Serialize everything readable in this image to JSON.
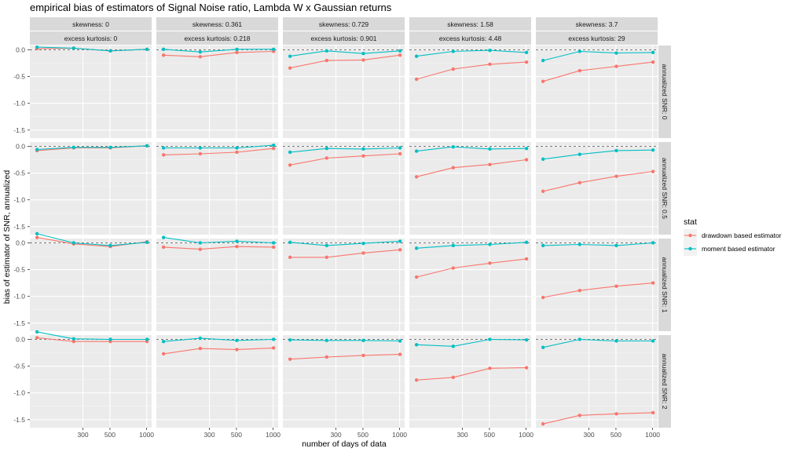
{
  "chart_data": {
    "type": "line",
    "title": "empirical bias of estimators of Signal Noise ratio, Lambda W x Gaussian returns",
    "xlabel": "number of days of data",
    "ylabel": "bias of estimator of SNR, annualized",
    "x": [
      126,
      252,
      504,
      1008
    ],
    "x_scale": "log",
    "xlim": [
      110,
      1100
    ],
    "x_ticks": [
      300,
      500,
      1000
    ],
    "x_tick_labels": [
      "300",
      "500",
      "1000"
    ],
    "ylim": [
      -1.65,
      0.08
    ],
    "y_ticks": [
      0.0,
      -0.5,
      -1.0,
      -1.5
    ],
    "y_tick_labels": [
      "0.0",
      "-0.5",
      "-1.0",
      "-1.5"
    ],
    "reference_line": 0,
    "columns": [
      {
        "skewness": "skewness: 0",
        "kurtosis": "excess kurtosis: 0"
      },
      {
        "skewness": "skewness: 0.361",
        "kurtosis": "excess kurtosis: 0.218"
      },
      {
        "skewness": "skewness: 0.729",
        "kurtosis": "excess kurtosis: 0.901"
      },
      {
        "skewness": "skewness: 1.58",
        "kurtosis": "excess kurtosis: 4.48"
      },
      {
        "skewness": "skewness: 3.7",
        "kurtosis": "excess kurtosis: 29"
      }
    ],
    "rows": [
      "annualized SNR: 0",
      "annualized SNR: 0.5",
      "annualized SNR: 1",
      "annualized SNR: 2"
    ],
    "legend": {
      "title": "stat",
      "entries": [
        {
          "key": "drawdown",
          "label": "drawdown based estimator",
          "color": "#F8766D"
        },
        {
          "key": "moment",
          "label": "moment based estimator",
          "color": "#00BFC4"
        }
      ]
    },
    "series": {
      "drawdown": [
        [
          [
            0.02,
            0.03,
            -0.02,
            0.01
          ],
          [
            -0.1,
            -0.13,
            -0.05,
            -0.03
          ],
          [
            -0.34,
            -0.2,
            -0.19,
            -0.1
          ],
          [
            -0.55,
            -0.36,
            -0.27,
            -0.23
          ],
          [
            -0.59,
            -0.39,
            -0.31,
            -0.23
          ]
        ],
        [
          [
            -0.08,
            -0.03,
            -0.03,
            0.01
          ],
          [
            -0.16,
            -0.14,
            -0.11,
            -0.04
          ],
          [
            -0.35,
            -0.22,
            -0.18,
            -0.14
          ],
          [
            -0.57,
            -0.4,
            -0.34,
            -0.25
          ],
          [
            -0.84,
            -0.68,
            -0.56,
            -0.47
          ]
        ],
        [
          [
            0.1,
            -0.02,
            -0.07,
            0.02
          ],
          [
            -0.08,
            -0.12,
            -0.07,
            -0.08
          ],
          [
            -0.27,
            -0.27,
            -0.19,
            -0.13
          ],
          [
            -0.64,
            -0.47,
            -0.38,
            -0.3
          ],
          [
            -1.02,
            -0.89,
            -0.81,
            -0.75
          ]
        ],
        [
          [
            0.03,
            -0.04,
            -0.04,
            -0.04
          ],
          [
            -0.27,
            -0.17,
            -0.19,
            -0.16
          ],
          [
            -0.37,
            -0.33,
            -0.3,
            -0.28
          ],
          [
            -0.76,
            -0.71,
            -0.54,
            -0.53
          ],
          [
            -1.58,
            -1.42,
            -1.39,
            -1.37
          ]
        ]
      ],
      "moment": [
        [
          [
            0.05,
            0.03,
            -0.02,
            0.01
          ],
          [
            0.01,
            -0.04,
            0.01,
            0.01
          ],
          [
            -0.12,
            -0.02,
            -0.07,
            -0.02
          ],
          [
            -0.12,
            -0.03,
            -0.01,
            -0.05
          ],
          [
            -0.2,
            -0.03,
            -0.06,
            -0.05
          ]
        ],
        [
          [
            -0.06,
            -0.02,
            -0.02,
            0.01
          ],
          [
            -0.03,
            -0.03,
            -0.03,
            0.02
          ],
          [
            -0.11,
            -0.04,
            -0.05,
            -0.03
          ],
          [
            -0.09,
            -0.01,
            -0.05,
            -0.04
          ],
          [
            -0.24,
            -0.15,
            -0.08,
            -0.07
          ]
        ],
        [
          [
            0.17,
            0.0,
            -0.05,
            0.01
          ],
          [
            0.1,
            0.0,
            0.03,
            0.0
          ],
          [
            0.01,
            -0.05,
            -0.01,
            0.03
          ],
          [
            -0.1,
            -0.05,
            -0.03,
            0.01
          ],
          [
            -0.05,
            -0.03,
            -0.05,
            0.0
          ]
        ],
        [
          [
            0.14,
            0.01,
            0.0,
            0.0
          ],
          [
            -0.04,
            0.02,
            -0.02,
            0.0
          ],
          [
            -0.01,
            -0.02,
            -0.02,
            -0.03
          ],
          [
            -0.1,
            -0.13,
            0.0,
            -0.01
          ],
          [
            -0.15,
            0.0,
            -0.03,
            -0.03
          ]
        ]
      ]
    }
  }
}
